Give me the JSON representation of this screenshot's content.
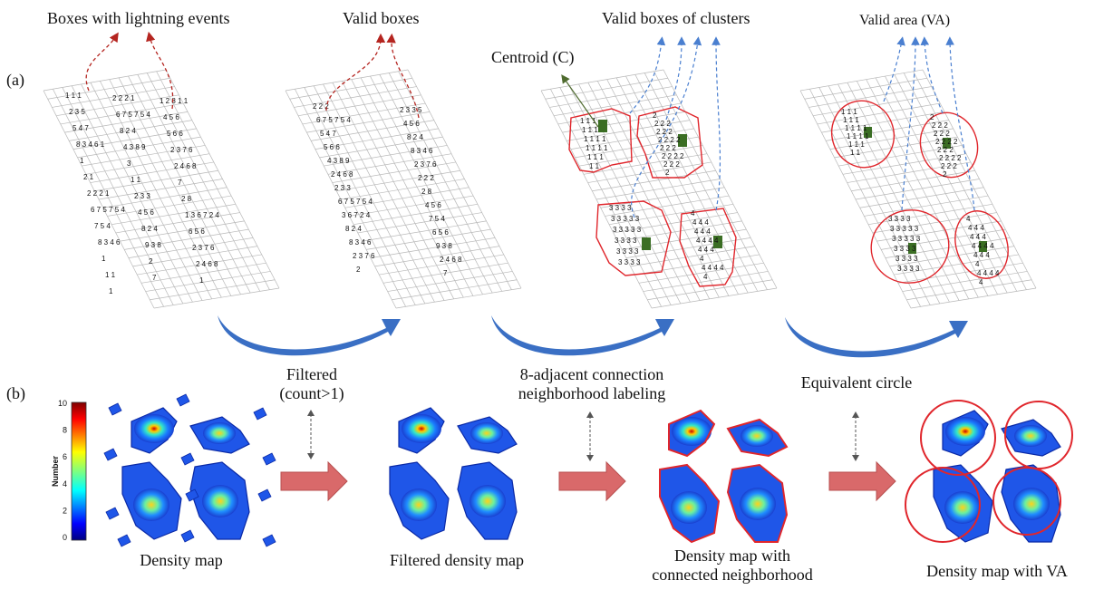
{
  "panel_a": {
    "label": "(a)",
    "titles": [
      "Boxes with lightning events",
      "Valid boxes",
      "Valid boxes of clusters",
      "Valid area (VA)"
    ],
    "centroid_label": "Centroid (C)",
    "grid_numbers": {
      "all_boxes": [
        "1 1 1",
        "2 2 2 1",
        "1 2 8 1 1",
        "2 3 5",
        "6 7 5 7 5 4",
        "4 5 6",
        "5 4 7",
        "8 2 4",
        "5 6 6",
        "8 3 4 6 1",
        "4 3 8 9",
        "2 3 7 6",
        "1",
        "3",
        "2 4 6 8",
        "2 1",
        "1 1",
        "7",
        "2 2 2 1",
        "2 3 3",
        "2 8",
        "6 7 5 7 5 4",
        "4 5 6",
        "1 3 6 7 2 4",
        "7 5 4",
        "8 2 4",
        "6 5 6",
        "8 3 4 6",
        "9 3 8",
        "2 3 7 6",
        "1",
        "2",
        "2 4 6 8",
        "1 1",
        "7",
        "1",
        "1"
      ],
      "valid_boxes": [
        "2 2 2",
        "2 3 3 5",
        "6 7 5 7 5 4",
        "4 5 6",
        "5 4 7",
        "8 2 4",
        "5 6 6",
        "8 3 4 6",
        "4 3 8 9",
        "2 3 7 6",
        "2 4 6 8",
        "2 2 2",
        "2 3 3",
        "2 8",
        "6 7 5 7 5 4",
        "4 5 6",
        "3 6 7 2 4",
        "7 5 4",
        "8 2 4",
        "6 5 6",
        "8 3 4 6",
        "9 3 8",
        "2 3 7 6",
        "2 4 6 8",
        "2",
        "7"
      ],
      "clusters": {
        "c1": [
          "1 1 1",
          "1 1 1",
          "1 1 1 1",
          "1 1 1 1",
          "1 1 1",
          "1 1"
        ],
        "c2": [
          "2",
          "2 2 2",
          "2 2 2",
          "2 2 2 2",
          "2 2 2",
          "2 2 2 2",
          "2 2 2",
          "2"
        ],
        "c3": [
          "3 3 3 3",
          "3 3 3 3 3",
          "3 3 3 3 3",
          "3 3 3 3",
          "3 3 3 3",
          "3 3 3 3"
        ],
        "c4": [
          "4",
          "4 4 4",
          "4 4 4",
          "4 4 4 4",
          "4 4 4",
          "4",
          "4 4 4 4",
          "4"
        ]
      }
    }
  },
  "panel_b": {
    "label": "(b)",
    "steps": [
      {
        "caption": [
          "Density map"
        ]
      },
      {
        "caption": [
          "Filtered density map"
        ]
      },
      {
        "caption": [
          "Density map with",
          "connected neighborhood"
        ]
      },
      {
        "caption": [
          "Density map with VA"
        ]
      }
    ],
    "operations": [
      {
        "text": [
          "Filtered",
          "(count>1)"
        ]
      },
      {
        "text": [
          "8-adjacent connection",
          "neighborhood labeling"
        ]
      },
      {
        "text": [
          "Equivalent circle"
        ]
      }
    ],
    "colorbar": {
      "label": "Number",
      "ticks": [
        "10",
        "8",
        "6",
        "4",
        "2",
        "0"
      ],
      "min": 0,
      "max": 10
    }
  },
  "colors": {
    "grid_line": "#b8b8b8",
    "highlight_red": "#e0262c",
    "dashed_blue": "#4a7fd0",
    "dashed_red": "#b52520",
    "centroid_green": "#2e7d32",
    "swoosh_blue": "#3a6fc4",
    "block_arrow": "#d9696a"
  }
}
